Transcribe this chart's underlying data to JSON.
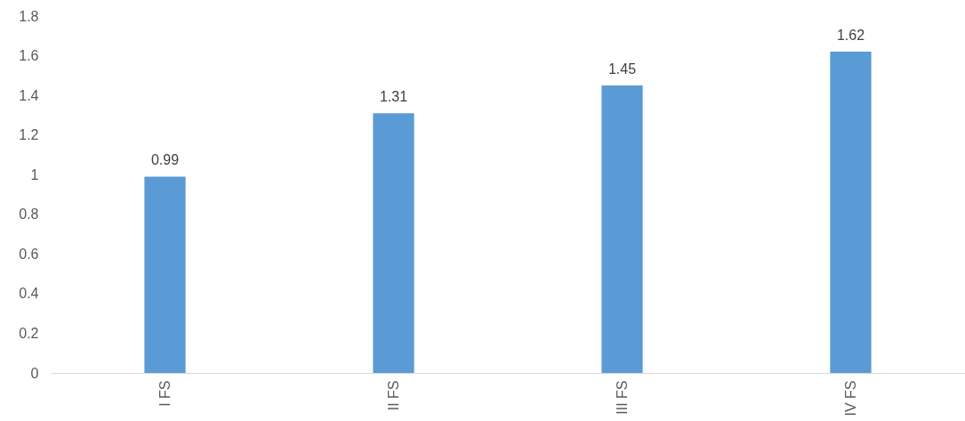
{
  "chart_data": {
    "type": "bar",
    "categories": [
      "I FS",
      "II FS",
      "III FS",
      "IV FS"
    ],
    "values": [
      0.99,
      1.31,
      1.45,
      1.62
    ],
    "color": "#5b9bd5",
    "ylim": [
      0,
      1.8
    ],
    "yticks": [
      0,
      0.2,
      0.4,
      0.6,
      0.8,
      1,
      1.2,
      1.4,
      1.6,
      1.8
    ],
    "grid": false,
    "data_labels": true
  }
}
